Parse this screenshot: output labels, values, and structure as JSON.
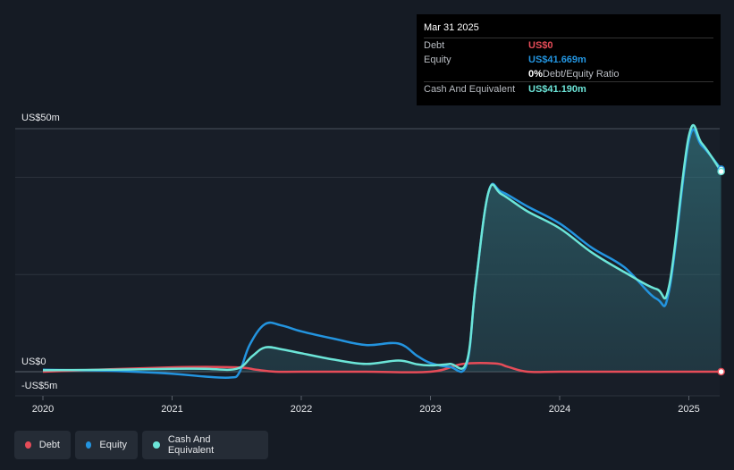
{
  "tooltip": {
    "date": "Mar 31 2025",
    "rows": [
      {
        "label": "Debt",
        "value": "US$0",
        "color": "#e64c58"
      },
      {
        "label": "Equity",
        "value": "US$41.669m",
        "color": "#2394df"
      },
      {
        "label": "",
        "value": "0%",
        "suffix": " Debt/Equity Ratio",
        "color": "#ffffff"
      },
      {
        "label": "Cash And Equivalent",
        "value": "US$41.190m",
        "color": "#6ce5d8"
      }
    ]
  },
  "legend": [
    {
      "label": "Debt",
      "color": "#e64c58"
    },
    {
      "label": "Equity",
      "color": "#2394df"
    },
    {
      "label": "Cash And Equivalent",
      "color": "#6ce5d8"
    }
  ],
  "chart_data": {
    "type": "line",
    "y_unit": "US$m",
    "ylim": [
      -5,
      50
    ],
    "y_axis_labels": [
      "US$50m",
      "US$0",
      "-US$5m"
    ],
    "x_ticks": [
      "2020",
      "2021",
      "2022",
      "2023",
      "2024",
      "2025"
    ],
    "xlim": [
      2019.9,
      2025.25
    ],
    "series": [
      {
        "name": "Debt",
        "color": "#e64c58",
        "x": [
          2020.0,
          2021.0,
          2021.5,
          2021.65,
          2021.8,
          2022.0,
          2022.5,
          2023.0,
          2023.25,
          2023.5,
          2023.6,
          2023.75,
          2024.0,
          2024.5,
          2025.0,
          2025.25
        ],
        "y": [
          0,
          0.9,
          0.9,
          0.4,
          0,
          0,
          0,
          0,
          1.6,
          1.7,
          1.0,
          0,
          0,
          0,
          0,
          0
        ]
      },
      {
        "name": "Equity",
        "color": "#2394df",
        "x": [
          2020.0,
          2020.5,
          2021.0,
          2021.25,
          2021.45,
          2021.52,
          2021.6,
          2021.72,
          2021.85,
          2022.0,
          2022.25,
          2022.5,
          2022.75,
          2022.9,
          2023.0,
          2023.15,
          2023.28,
          2023.35,
          2023.45,
          2023.55,
          2023.75,
          2024.0,
          2024.25,
          2024.5,
          2024.75,
          2024.85,
          2025.0,
          2025.1,
          2025.25
        ],
        "y": [
          0.4,
          0.2,
          -0.4,
          -1.0,
          -1.2,
          -0.2,
          5.5,
          9.8,
          9.5,
          8.3,
          6.8,
          5.5,
          5.8,
          3.2,
          1.8,
          1.0,
          1.5,
          18.0,
          37.0,
          37.0,
          34.0,
          30.5,
          25.5,
          21.5,
          15.0,
          17.0,
          47.5,
          46.5,
          41.669
        ]
      },
      {
        "name": "Cash And Equivalent",
        "color": "#6ce5d8",
        "x": [
          2020.0,
          2020.5,
          2021.0,
          2021.25,
          2021.5,
          2021.62,
          2021.72,
          2021.85,
          2022.0,
          2022.25,
          2022.5,
          2022.75,
          2022.9,
          2023.0,
          2023.15,
          2023.28,
          2023.35,
          2023.45,
          2023.55,
          2023.75,
          2024.0,
          2024.25,
          2024.5,
          2024.75,
          2024.85,
          2025.0,
          2025.1,
          2025.25
        ],
        "y": [
          0.3,
          0.4,
          0.6,
          0.6,
          0.6,
          3.2,
          5.0,
          4.6,
          3.8,
          2.5,
          1.6,
          2.3,
          1.5,
          1.3,
          1.6,
          2.0,
          18.0,
          37.0,
          36.5,
          33.0,
          29.5,
          24.5,
          20.5,
          17.0,
          18.0,
          48.5,
          47.0,
          41.19
        ]
      }
    ]
  }
}
